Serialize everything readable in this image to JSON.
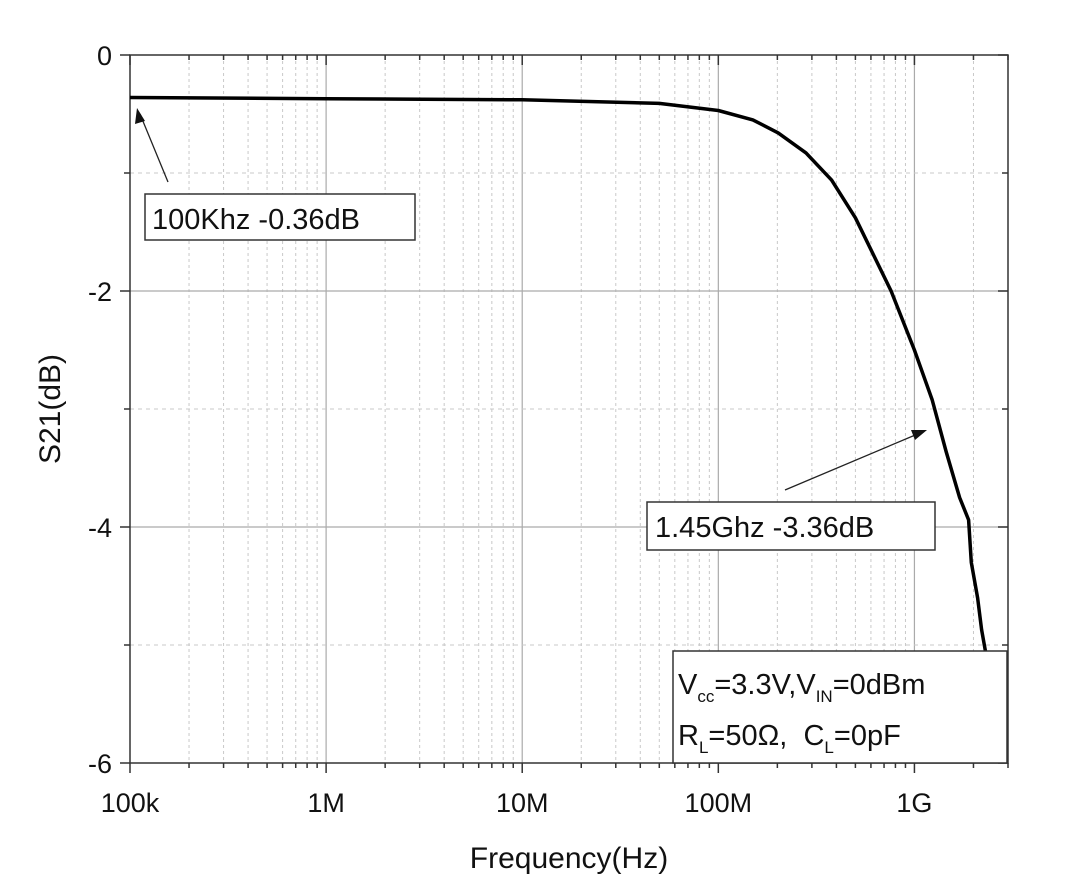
{
  "chart_data": {
    "type": "line",
    "title": "",
    "xlabel": "Frequency(Hz)",
    "ylabel": "S21(dB)",
    "x_scale": "log",
    "xlim": [
      100000,
      3000000000
    ],
    "ylim": [
      -6,
      0
    ],
    "x_ticks": [
      {
        "value": 100000,
        "label": "100k"
      },
      {
        "value": 1000000,
        "label": "1M"
      },
      {
        "value": 10000000,
        "label": "10M"
      },
      {
        "value": 100000000,
        "label": "100M"
      },
      {
        "value": 1000000000,
        "label": "1G"
      }
    ],
    "y_ticks": [
      {
        "value": 0,
        "label": "0"
      },
      {
        "value": -2,
        "label": "-2"
      },
      {
        "value": -4,
        "label": "-4"
      },
      {
        "value": -6,
        "label": "-6"
      }
    ],
    "grid": true,
    "line_color": "#000000",
    "series": [
      {
        "x": [
          100000,
          1000000,
          10000000,
          50000000,
          100000000,
          150000000,
          202000000,
          280000000,
          378000000,
          500000000,
          760000000,
          1000000000,
          1230000000,
          1450000000,
          1700000000,
          1890000000,
          1950000000,
          2100000000,
          2200000000,
          2300000000
        ],
        "y": [
          -0.36,
          -0.37,
          -0.38,
          -0.41,
          -0.47,
          -0.55,
          -0.66,
          -0.83,
          -1.06,
          -1.38,
          -2.0,
          -2.5,
          -2.92,
          -3.36,
          -3.75,
          -3.94,
          -4.3,
          -4.6,
          -4.87,
          -5.05
        ]
      }
    ],
    "annotations": [
      {
        "text": "100Khz -0.36dB",
        "x": 100000,
        "y": -0.36
      },
      {
        "text": "1.45Ghz -3.36dB",
        "x": 1450000000,
        "y": -3.36
      }
    ],
    "info_box": {
      "line1": {
        "v": "V",
        "v_sub": "cc",
        "mid": "=3.3V,V",
        "mid_sub": "IN",
        "end": "=0dBm"
      },
      "line2": {
        "r": "R",
        "r_sub": "L",
        "mid": "=50Ω,  C",
        "mid_sub": "L",
        "end": "=0pF"
      }
    }
  }
}
